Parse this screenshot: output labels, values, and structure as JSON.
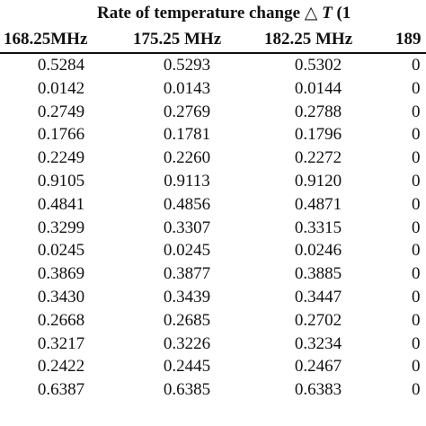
{
  "table": {
    "title_prefix": "Rate of temperature change ",
    "title_delta": "△",
    "title_symbol": "T",
    "title_suffix": " (1",
    "headers": [
      "168.25MHz",
      "175.25 MHz",
      "182.25 MHz",
      "189"
    ],
    "rows": [
      [
        "0.5284",
        "0.5293",
        "0.5302",
        "0"
      ],
      [
        "0.0142",
        "0.0143",
        "0.0144",
        "0"
      ],
      [
        "0.2749",
        "0.2769",
        "0.2788",
        "0"
      ],
      [
        "0.1766",
        "0.1781",
        "0.1796",
        "0"
      ],
      [
        "0.2249",
        "0.2260",
        "0.2272",
        "0"
      ],
      [
        "0.9105",
        "0.9113",
        "0.9120",
        "0"
      ],
      [
        "0.4841",
        "0.4856",
        "0.4871",
        "0"
      ],
      [
        "0.3299",
        "0.3307",
        "0.3315",
        "0"
      ],
      [
        "0.0245",
        "0.0245",
        "0.0246",
        "0"
      ],
      [
        "0.3869",
        "0.3877",
        "0.3885",
        "0"
      ],
      [
        "0.3430",
        "0.3439",
        "0.3447",
        "0"
      ],
      [
        "0.2668",
        "0.2685",
        "0.2702",
        "0"
      ],
      [
        "0.3217",
        "0.3226",
        "0.3234",
        "0"
      ],
      [
        "0.2422",
        "0.2445",
        "0.2467",
        "0"
      ],
      [
        "0.6387",
        "0.6385",
        "0.6383",
        "0"
      ]
    ]
  }
}
